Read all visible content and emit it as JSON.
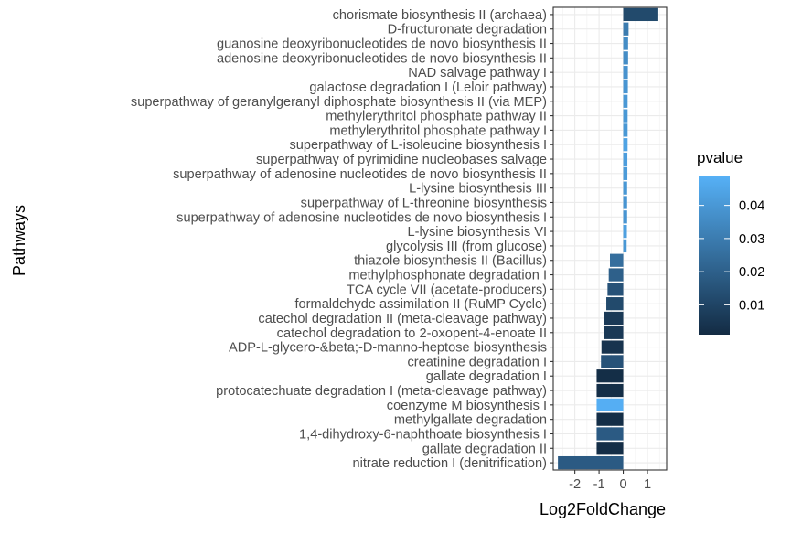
{
  "chart_data": {
    "type": "bar",
    "orientation": "horizontal",
    "xlabel": "Log2FoldChange",
    "ylabel": "Pathways",
    "xlim": [
      -2.7,
      1.6
    ],
    "xticks": [
      -2,
      -1,
      0,
      1
    ],
    "xtick_labels": [
      "-2",
      "-1",
      "0",
      "1"
    ],
    "grid": true,
    "legend": {
      "title": "pvalue",
      "position": "right",
      "ticks": [
        0.01,
        0.02,
        0.03,
        0.04
      ],
      "tick_labels": [
        "0.01",
        "0.02",
        "0.03",
        "0.04"
      ],
      "range": [
        0.001,
        0.049
      ],
      "color_low": "#132B43",
      "color_high": "#56B1F7"
    },
    "bars": [
      {
        "pathway": "chorismate biosynthesis II (archaea)",
        "value": 1.45,
        "pvalue": 0.012
      },
      {
        "pathway": "D-fructuronate degradation",
        "value": 0.22,
        "pvalue": 0.03
      },
      {
        "pathway": "guanosine deoxyribonucleotides de novo biosynthesis II",
        "value": 0.2,
        "pvalue": 0.036
      },
      {
        "pathway": "adenosine deoxyribonucleotides de novo biosynthesis II",
        "value": 0.2,
        "pvalue": 0.036
      },
      {
        "pathway": "NAD salvage pathway I",
        "value": 0.19,
        "pvalue": 0.038
      },
      {
        "pathway": "galactose degradation I (Leloir pathway)",
        "value": 0.19,
        "pvalue": 0.039
      },
      {
        "pathway": "superpathway of geranylgeranyl diphosphate biosynthesis II (via MEP)",
        "value": 0.18,
        "pvalue": 0.04
      },
      {
        "pathway": "methylerythritol phosphate pathway II",
        "value": 0.18,
        "pvalue": 0.04
      },
      {
        "pathway": "methylerythritol phosphate pathway I",
        "value": 0.18,
        "pvalue": 0.04
      },
      {
        "pathway": "superpathway of L-isoleucine biosynthesis I",
        "value": 0.18,
        "pvalue": 0.044
      },
      {
        "pathway": "superpathway of pyrimidine nucleobases salvage",
        "value": 0.17,
        "pvalue": 0.042
      },
      {
        "pathway": "superpathway of adenosine nucleotides de novo biosynthesis II",
        "value": 0.17,
        "pvalue": 0.041
      },
      {
        "pathway": "L-lysine biosynthesis III",
        "value": 0.16,
        "pvalue": 0.04
      },
      {
        "pathway": "superpathway of L-threonine biosynthesis",
        "value": 0.16,
        "pvalue": 0.039
      },
      {
        "pathway": "superpathway of adenosine nucleotides de novo biosynthesis I",
        "value": 0.16,
        "pvalue": 0.039
      },
      {
        "pathway": "L-lysine biosynthesis VI",
        "value": 0.15,
        "pvalue": 0.043
      },
      {
        "pathway": "glycolysis III (from glucose)",
        "value": 0.14,
        "pvalue": 0.04
      },
      {
        "pathway": "thiazole biosynthesis II (Bacillus)",
        "value": -0.55,
        "pvalue": 0.025
      },
      {
        "pathway": "methylphosphonate degradation I",
        "value": -0.6,
        "pvalue": 0.02
      },
      {
        "pathway": "TCA cycle VII (acetate-producers)",
        "value": -0.65,
        "pvalue": 0.015
      },
      {
        "pathway": "formaldehyde assimilation II (RuMP Cycle)",
        "value": -0.7,
        "pvalue": 0.012
      },
      {
        "pathway": "catechol degradation II (meta-cleavage pathway)",
        "value": -0.8,
        "pvalue": 0.006
      },
      {
        "pathway": "catechol degradation to 2-oxopent-4-enoate II",
        "value": -0.8,
        "pvalue": 0.006
      },
      {
        "pathway": "ADP-L-glycero-&beta;-D-manno-heptose biosynthesis",
        "value": -0.9,
        "pvalue": 0.004
      },
      {
        "pathway": "creatinine degradation I",
        "value": -0.92,
        "pvalue": 0.015
      },
      {
        "pathway": "gallate degradation I",
        "value": -1.1,
        "pvalue": 0.002
      },
      {
        "pathway": "protocatechuate degradation I (meta-cleavage pathway)",
        "value": -1.1,
        "pvalue": 0.002
      },
      {
        "pathway": "coenzyme M biosynthesis I",
        "value": -1.1,
        "pvalue": 0.048
      },
      {
        "pathway": "methylgallate degradation",
        "value": -1.1,
        "pvalue": 0.002
      },
      {
        "pathway": "1,4-dihydroxy-6-naphthoate biosynthesis I",
        "value": -1.1,
        "pvalue": 0.018
      },
      {
        "pathway": "gallate degradation II",
        "value": -1.1,
        "pvalue": 0.002
      },
      {
        "pathway": "nitrate reduction I (denitrification)",
        "value": -2.7,
        "pvalue": 0.018
      }
    ]
  }
}
